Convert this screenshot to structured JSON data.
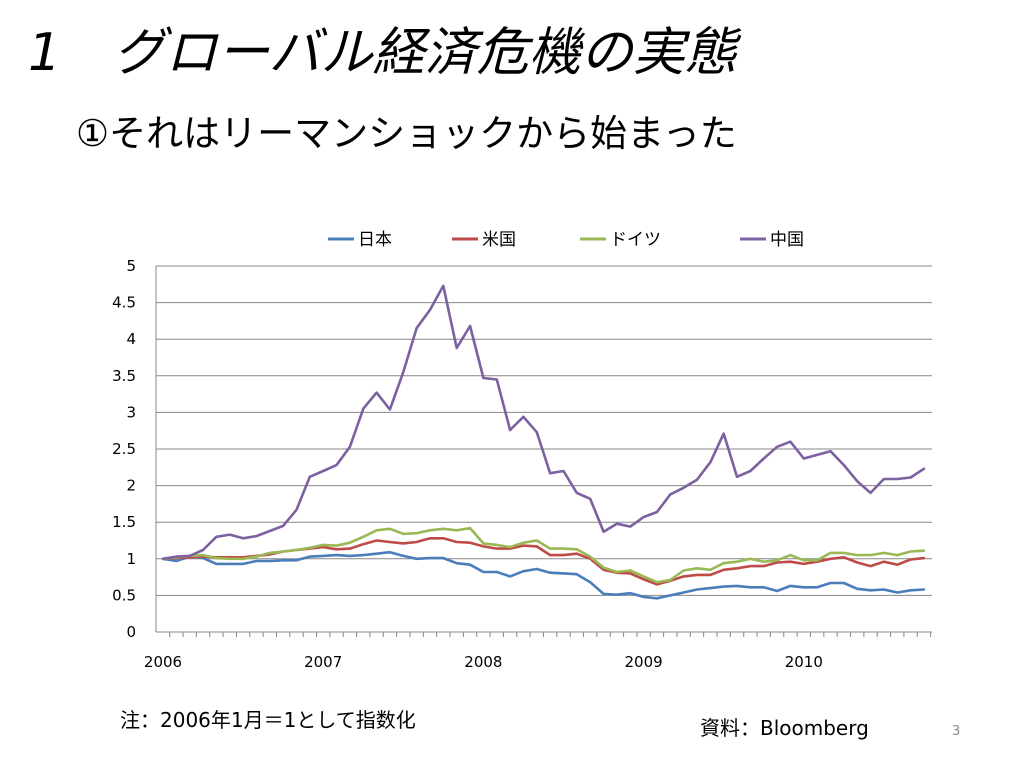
{
  "slide": {
    "title": "1　グローバル経済危機の実態",
    "subtitle": "①それはリーマンショックから始まった",
    "note": "注：2006年1月＝1として指数化",
    "source": "資料：Bloomberg",
    "page_number": "3"
  },
  "chart_data": {
    "type": "line",
    "title": "",
    "xlabel": "",
    "ylabel": "",
    "ylim": [
      0,
      5
    ],
    "y_ticks": [
      "0",
      "0.5",
      "1",
      "1.5",
      "2",
      "2.5",
      "3",
      "3.5",
      "4",
      "4.5",
      "5"
    ],
    "x_tick_labels": [
      "2006",
      "2007",
      "2008",
      "2009",
      "2010"
    ],
    "x_start": "2006-01",
    "x_end": "2010-10",
    "x_frequency": "monthly",
    "grid": "horizontal",
    "legend_position": "top",
    "series": [
      {
        "name": "日本",
        "color": "#4a7ebb",
        "values": [
          1.0,
          0.97,
          1.03,
          1.01,
          0.93,
          0.93,
          0.93,
          0.97,
          0.97,
          0.98,
          0.98,
          1.03,
          1.04,
          1.05,
          1.04,
          1.05,
          1.07,
          1.09,
          1.04,
          1.0,
          1.01,
          1.01,
          0.94,
          0.92,
          0.82,
          0.82,
          0.76,
          0.83,
          0.86,
          0.81,
          0.8,
          0.79,
          0.68,
          0.52,
          0.51,
          0.53,
          0.48,
          0.46,
          0.5,
          0.54,
          0.58,
          0.6,
          0.62,
          0.63,
          0.61,
          0.61,
          0.56,
          0.63,
          0.61,
          0.61,
          0.67,
          0.67,
          0.59,
          0.57,
          0.58,
          0.54,
          0.57,
          0.58
        ]
      },
      {
        "name": "米国",
        "color": "#be4b48",
        "values": [
          1.0,
          1.01,
          1.02,
          1.03,
          1.02,
          1.02,
          1.02,
          1.04,
          1.06,
          1.1,
          1.12,
          1.14,
          1.16,
          1.13,
          1.14,
          1.2,
          1.25,
          1.23,
          1.21,
          1.23,
          1.28,
          1.28,
          1.23,
          1.22,
          1.17,
          1.14,
          1.14,
          1.18,
          1.17,
          1.05,
          1.05,
          1.07,
          1.0,
          0.85,
          0.81,
          0.8,
          0.72,
          0.65,
          0.7,
          0.76,
          0.78,
          0.78,
          0.85,
          0.87,
          0.9,
          0.9,
          0.95,
          0.96,
          0.93,
          0.96,
          1.0,
          1.02,
          0.95,
          0.9,
          0.96,
          0.92,
          0.99,
          1.01
        ]
      },
      {
        "name": "ドイツ",
        "color": "#98b954",
        "values": [
          1.0,
          1.02,
          1.04,
          1.05,
          1.01,
          1.0,
          1.0,
          1.03,
          1.08,
          1.1,
          1.12,
          1.15,
          1.19,
          1.18,
          1.22,
          1.3,
          1.39,
          1.41,
          1.34,
          1.35,
          1.39,
          1.41,
          1.39,
          1.42,
          1.21,
          1.19,
          1.16,
          1.22,
          1.25,
          1.14,
          1.14,
          1.13,
          1.03,
          0.88,
          0.82,
          0.84,
          0.76,
          0.68,
          0.71,
          0.84,
          0.87,
          0.85,
          0.94,
          0.96,
          1.0,
          0.96,
          0.98,
          1.05,
          0.98,
          0.98,
          1.08,
          1.08,
          1.05,
          1.05,
          1.08,
          1.05,
          1.1,
          1.11
        ]
      },
      {
        "name": "中国",
        "color": "#7d60a0",
        "values": [
          1.0,
          1.03,
          1.04,
          1.12,
          1.3,
          1.33,
          1.28,
          1.31,
          1.38,
          1.45,
          1.67,
          2.12,
          2.2,
          2.28,
          2.53,
          3.05,
          3.27,
          3.04,
          3.55,
          4.15,
          4.4,
          4.73,
          3.88,
          4.18,
          3.47,
          3.45,
          2.76,
          2.94,
          2.73,
          2.17,
          2.2,
          1.9,
          1.82,
          1.37,
          1.48,
          1.44,
          1.57,
          1.64,
          1.88,
          1.97,
          2.08,
          2.32,
          2.71,
          2.12,
          2.2,
          2.37,
          2.53,
          2.6,
          2.37,
          2.42,
          2.47,
          2.28,
          2.06,
          1.9,
          2.09,
          2.09,
          2.11,
          2.23
        ]
      }
    ]
  }
}
